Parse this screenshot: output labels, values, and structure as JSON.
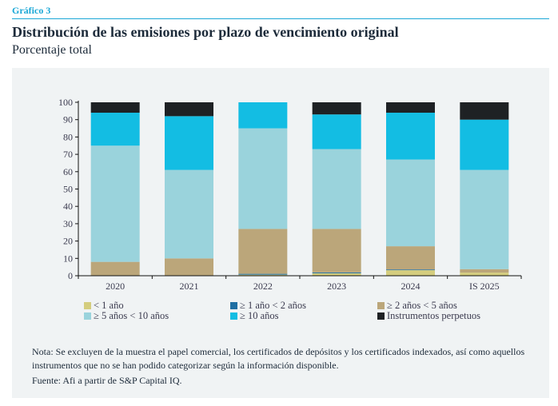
{
  "header": {
    "kicker": "Gráfico 3",
    "title": "Distribución de las emisiones por plazo de vencimiento original",
    "subtitle": "Porcentaje total"
  },
  "chart_data": {
    "type": "bar",
    "stacked": true,
    "title": "Distribución de las emisiones por plazo de vencimiento original",
    "subtitle": "Porcentaje total",
    "xlabel": "",
    "ylabel": "",
    "ylim": [
      0,
      100
    ],
    "yticks": [
      0,
      10,
      20,
      30,
      40,
      50,
      60,
      70,
      80,
      90,
      100
    ],
    "grid": false,
    "legend_position": "bottom",
    "categories": [
      "2020",
      "2021",
      "2022",
      "2023",
      "2024",
      "IS 2025"
    ],
    "series": [
      {
        "name": "< 1 año",
        "color": "#d4cd7e",
        "values": [
          0,
          0,
          0.6,
          1.4,
          3.2,
          1.8
        ]
      },
      {
        "name": "≥ 1 año < 2 años",
        "color": "#1f6fa3",
        "values": [
          0,
          0,
          0.5,
          0.5,
          0.4,
          0
        ]
      },
      {
        "name": "≥ 2 años < 5 años",
        "color": "#bba67a",
        "values": [
          8,
          10,
          25.9,
          25.1,
          13.4,
          2
        ]
      },
      {
        "name": "≥ 5 años < 10 años",
        "color": "#9ad3dc",
        "values": [
          67,
          51,
          58,
          46,
          50,
          57.2
        ]
      },
      {
        "name": "≥ 10 años",
        "color": "#13bde3",
        "values": [
          19,
          31,
          15,
          20,
          27,
          29
        ]
      },
      {
        "name": "Instrumentos perpetuos",
        "color": "#1e2124",
        "values": [
          6,
          8,
          0,
          7,
          6,
          10
        ]
      }
    ]
  },
  "legend": [
    {
      "label": "< 1 año",
      "color": "#d4cd7e"
    },
    {
      "label": "≥ 1 año < 2 años",
      "color": "#1f6fa3"
    },
    {
      "label": "≥ 2 años < 5 años",
      "color": "#bba67a"
    },
    {
      "label": "≥ 5 años < 10 años",
      "color": "#9ad3dc"
    },
    {
      "label": "≥ 10 años",
      "color": "#13bde3"
    },
    {
      "label": "Instrumentos perpetuos",
      "color": "#1e2124"
    }
  ],
  "footer": {
    "note": "Nota: Se excluyen de la muestra el papel comercial, los certificados de depósitos y los certificados indexados, así como aquellos instrumentos que no se han podido categorizar según la información disponible.",
    "source": "Fuente: Afi a partir de S&P Capital IQ."
  },
  "colors": {
    "accent": "#1aa7d6",
    "panel_background": "#f0f3f4"
  }
}
